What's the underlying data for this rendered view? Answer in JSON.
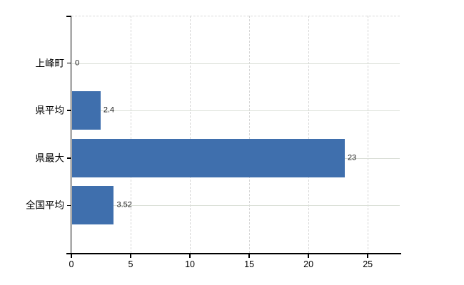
{
  "chart_data": {
    "type": "bar",
    "orientation": "horizontal",
    "title": "",
    "xlabel": "",
    "ylabel": "",
    "categories": [
      "上峰町",
      "県平均",
      "県最大",
      "全国平均"
    ],
    "values": [
      0,
      2.4,
      23,
      3.52
    ],
    "value_labels": [
      "0",
      "2.4",
      "23",
      "3.52"
    ],
    "xticks": [
      0,
      5,
      10,
      15,
      20,
      25
    ],
    "xtick_labels": [
      "0",
      "5",
      "10",
      "15",
      "20",
      "25"
    ],
    "xlim": [
      0,
      27.7
    ],
    "grid": true,
    "legend": false,
    "bar_color": "#3f6fad"
  },
  "colors": {
    "bar": "#3f6fad",
    "axis": "#000000",
    "grid_vertical": "#d6d6d6",
    "grid_horizontal": "#d9ded6",
    "plot_top_border": "#d9d9d9",
    "text": "#1a1a1a",
    "background": "#ffffff"
  }
}
